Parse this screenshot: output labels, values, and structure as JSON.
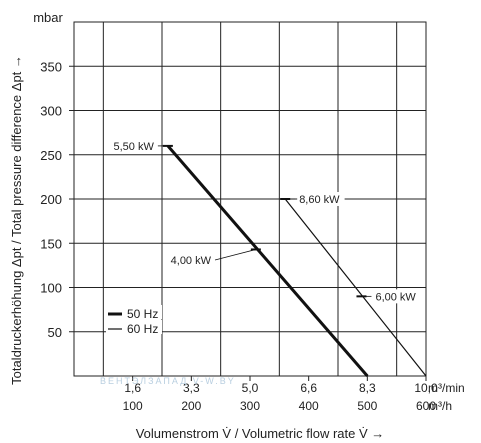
{
  "chart_data": {
    "type": "line",
    "ylabel": "Totaldruckerhöhung Δpt / Total pressure difference Δpt →",
    "yunit": "mbar",
    "xlabel": "Volumenstrom V̇ / Volumetric flow rate V̇ →",
    "x_units": [
      "m³/min",
      "m³/h"
    ],
    "ylim": [
      0,
      400
    ],
    "yticks": [
      50,
      100,
      150,
      200,
      250,
      300,
      350
    ],
    "xlim": [
      0,
      600
    ],
    "xticks": [
      {
        "m3h": 100,
        "m3min": "1,6"
      },
      {
        "m3h": 200,
        "m3min": "3,3"
      },
      {
        "m3h": 300,
        "m3min": "5,0"
      },
      {
        "m3h": 400,
        "m3min": "6,6"
      },
      {
        "m3h": 500,
        "m3min": "8,3"
      },
      {
        "m3h": 600,
        "m3min": "10,0"
      }
    ],
    "grid": true,
    "series": [
      {
        "name": "50 Hz",
        "style": "thick",
        "x": [
          160,
          500
        ],
        "y": [
          260,
          0
        ],
        "markers": [
          {
            "x": 160,
            "y": 260,
            "label": "5,50 kW"
          },
          {
            "x": 310,
            "y": 143,
            "label": "4,00 kW"
          }
        ]
      },
      {
        "name": "60 Hz",
        "style": "thin",
        "x": [
          360,
          600
        ],
        "y": [
          200,
          0
        ],
        "markers": [
          {
            "x": 360,
            "y": 200,
            "label": "8,60 kW"
          },
          {
            "x": 490,
            "y": 90,
            "label": "6,00 kW"
          }
        ]
      }
    ],
    "legend_position": "bottom-left"
  },
  "watermark": "ВЕНТЭЛЗАПАД V-W.BY"
}
